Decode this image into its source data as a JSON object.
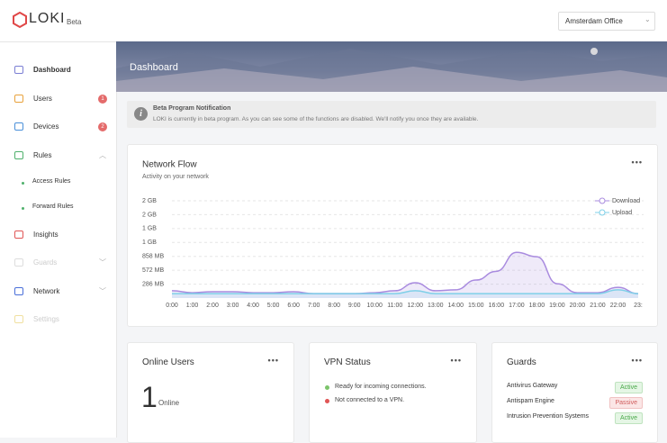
{
  "header": {
    "logo": "LOKI",
    "badge": "Beta",
    "location": "Amsterdam Office"
  },
  "sidebar": {
    "items": [
      {
        "label": "Dashboard"
      },
      {
        "label": "Users",
        "badge": "1"
      },
      {
        "label": "Devices",
        "badge": "2"
      },
      {
        "label": "Rules"
      },
      {
        "label": "Access Rules"
      },
      {
        "label": "Forward Rules"
      },
      {
        "label": "Insights"
      },
      {
        "label": "Guards"
      },
      {
        "label": "Network"
      },
      {
        "label": "Settings"
      }
    ]
  },
  "page_title": "Dashboard",
  "notification": {
    "title": "Beta Program Notification",
    "text": "LOKI is currently in beta program. As you can see some of the functions are disabled. We'll notify you once they are available."
  },
  "chart_data": {
    "type": "line",
    "title": "Network Flow",
    "subtitle": "Activity on your network",
    "categories": [
      "0:00",
      "1:00",
      "2:00",
      "3:00",
      "4:00",
      "5:00",
      "6:00",
      "7:00",
      "8:00",
      "9:00",
      "10:00",
      "11:00",
      "12:00",
      "13:00",
      "14:00",
      "15:00",
      "16:00",
      "17:00",
      "18:00",
      "19:00",
      "20:00",
      "21:00",
      "22:00",
      "23:"
    ],
    "series": [
      {
        "name": "Download",
        "color": "#a98bdf",
        "values": [
          150,
          110,
          130,
          130,
          110,
          110,
          130,
          90,
          90,
          90,
          110,
          150,
          315,
          150,
          170,
          370,
          550,
          940,
          850,
          295,
          110,
          110,
          220,
          90
        ]
      },
      {
        "name": "Upload",
        "color": "#7fd0e8",
        "values": [
          90,
          90,
          90,
          90,
          90,
          90,
          90,
          90,
          90,
          90,
          90,
          90,
          150,
          90,
          90,
          90,
          90,
          90,
          90,
          90,
          90,
          90,
          170,
          90
        ]
      }
    ],
    "ylim": [
      0,
      2002
    ],
    "yticks": [
      {
        "value": 286,
        "label": "286 MB"
      },
      {
        "value": 572,
        "label": "572 MB"
      },
      {
        "value": 858,
        "label": "858 MB"
      },
      {
        "value": 1144,
        "label": "1 GB"
      },
      {
        "value": 1430,
        "label": "1 GB"
      },
      {
        "value": 1716,
        "label": "2 GB"
      },
      {
        "value": 2002,
        "label": "2 GB"
      }
    ],
    "grid": true,
    "legend": "top-right"
  },
  "online_users": {
    "title": "Online Users",
    "count": "1",
    "label": "Online"
  },
  "vpn_status": {
    "title": "VPN Status",
    "items": [
      {
        "text": "Ready for incoming connections.",
        "color": "#7cc46b"
      },
      {
        "text": "Not connected to a VPN.",
        "color": "#e05555"
      }
    ]
  },
  "guards": {
    "title": "Guards",
    "rows": [
      {
        "name": "Antivirus Gateway",
        "status": "Active"
      },
      {
        "name": "Antispam Engine",
        "status": "Passive"
      },
      {
        "name": "Intrusion Prevention Systems",
        "status": "Active"
      }
    ]
  }
}
